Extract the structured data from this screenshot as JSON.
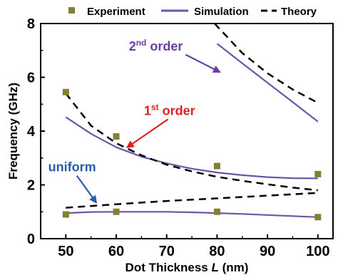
{
  "chart_data": {
    "type": "scatter",
    "xlabel": "Dot Thickness",
    "xlabel_var": "L",
    "xlabel_unit": "(nm)",
    "ylabel": "Frequency (GHz)",
    "xlim": [
      45,
      103
    ],
    "ylim": [
      0,
      8
    ],
    "xticks": [
      50,
      60,
      70,
      80,
      90,
      100
    ],
    "yticks": [
      0,
      2,
      4,
      6,
      8
    ],
    "grid": false,
    "legend_position": "top",
    "legend": {
      "experiment": "Experiment",
      "simulation": "Simulation",
      "theory": "Theory"
    },
    "colors": {
      "experiment": "#838033",
      "simulation": "#6a55a6",
      "theory": "#000000",
      "label_2nd": "#6a3fa0",
      "label_1st": "#e02020",
      "label_uniform": "#2a5ba8"
    },
    "series": [
      {
        "name": "Experiment",
        "kind": "markers",
        "x": [
          50,
          60,
          80,
          100
        ],
        "y": [
          5.45,
          3.8,
          2.7,
          2.4
        ]
      },
      {
        "name": "Experiment",
        "kind": "markers",
        "x": [
          50,
          60,
          80,
          100
        ],
        "y": [
          0.9,
          1.0,
          1.0,
          0.8
        ]
      },
      {
        "name": "Simulation",
        "kind": "solid",
        "x": [
          50,
          55,
          60,
          65,
          70,
          75,
          80,
          85,
          90,
          95,
          100
        ],
        "y": [
          4.52,
          3.9,
          3.4,
          3.05,
          2.8,
          2.6,
          2.46,
          2.36,
          2.29,
          2.25,
          2.24
        ]
      },
      {
        "name": "Simulation",
        "kind": "solid",
        "x": [
          50,
          55,
          60,
          65,
          70,
          75,
          80,
          85,
          90,
          95,
          100
        ],
        "y": [
          0.95,
          0.99,
          1.0,
          1.0,
          1.0,
          0.98,
          0.95,
          0.92,
          0.88,
          0.84,
          0.8
        ]
      },
      {
        "name": "Simulation",
        "kind": "solid",
        "x": [
          80,
          85,
          90,
          95,
          100
        ],
        "y": [
          7.25,
          6.52,
          5.8,
          5.08,
          4.35
        ]
      },
      {
        "name": "Theory",
        "kind": "dashed",
        "x": [
          50,
          55,
          60,
          65,
          70,
          75,
          80,
          85,
          90,
          95,
          100
        ],
        "y": [
          5.4,
          4.2,
          3.55,
          3.1,
          2.75,
          2.5,
          2.3,
          2.15,
          2.02,
          1.9,
          1.8
        ]
      },
      {
        "name": "Theory",
        "kind": "dashed",
        "x": [
          50,
          60,
          70,
          80,
          90,
          100
        ],
        "y": [
          1.15,
          1.28,
          1.4,
          1.5,
          1.6,
          1.7
        ]
      },
      {
        "name": "Theory",
        "kind": "dashed",
        "x": [
          79.5,
          85,
          90,
          95,
          100
        ],
        "y": [
          8.0,
          6.9,
          6.15,
          5.55,
          5.05
        ]
      }
    ],
    "annotations": [
      {
        "text_main": "2",
        "text_sup": "nd",
        "text_rest": " order",
        "color_key": "label_2nd",
        "x": 62.5,
        "y": 7.0,
        "arrow_to": [
          80.5,
          6.2
        ]
      },
      {
        "text_main": "1",
        "text_sup": "st",
        "text_rest": " order",
        "color_key": "label_1st",
        "x": 65.5,
        "y": 4.6,
        "arrow_to": [
          62.2,
          3.4
        ]
      },
      {
        "text_main": "uniform",
        "text_sup": "",
        "text_rest": "",
        "color_key": "label_uniform",
        "x": 46.5,
        "y": 2.5,
        "arrow_to": [
          56,
          1.35
        ]
      }
    ]
  }
}
